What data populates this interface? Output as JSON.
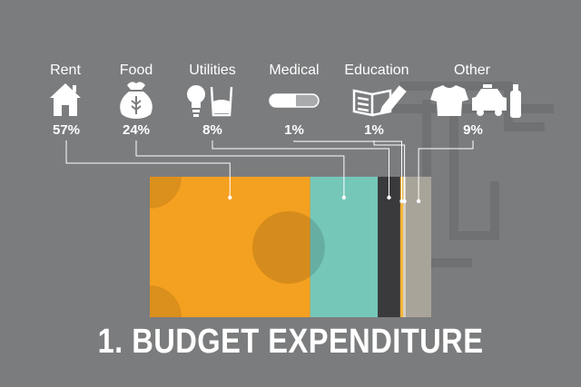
{
  "title": "1. BUDGET EXPENDITURE",
  "colors": {
    "background": "#7b7c7e",
    "rent": "#f4a020",
    "food": "#75c7b8",
    "utilities": "#3a3a3c",
    "medical": "#f6b53a",
    "education": "#d6d0c0",
    "other": "#a9a49a",
    "text": "#ffffff"
  },
  "categories": [
    {
      "label": "Rent",
      "pct": "57%",
      "icon": "house-icon"
    },
    {
      "label": "Food",
      "pct": "24%",
      "icon": "grain-sack-icon"
    },
    {
      "label": "Utilities",
      "pct": "8%",
      "icon": "bulb-and-water-icon"
    },
    {
      "label": "Medical",
      "pct": "1%",
      "icon": "pill-icon"
    },
    {
      "label": "Education",
      "pct": "1%",
      "icon": "book-pencil-icon"
    },
    {
      "label": "Other",
      "pct": "9%",
      "icon": "shirt-car-bottle-icon"
    }
  ],
  "chart_data": {
    "type": "bar",
    "orientation": "stacked-horizontal",
    "title": "1. BUDGET EXPENDITURE",
    "categories": [
      "Rent",
      "Food",
      "Utilities",
      "Medical",
      "Education",
      "Other"
    ],
    "values": [
      57,
      24,
      8,
      1,
      1,
      9
    ],
    "unit": "%"
  }
}
